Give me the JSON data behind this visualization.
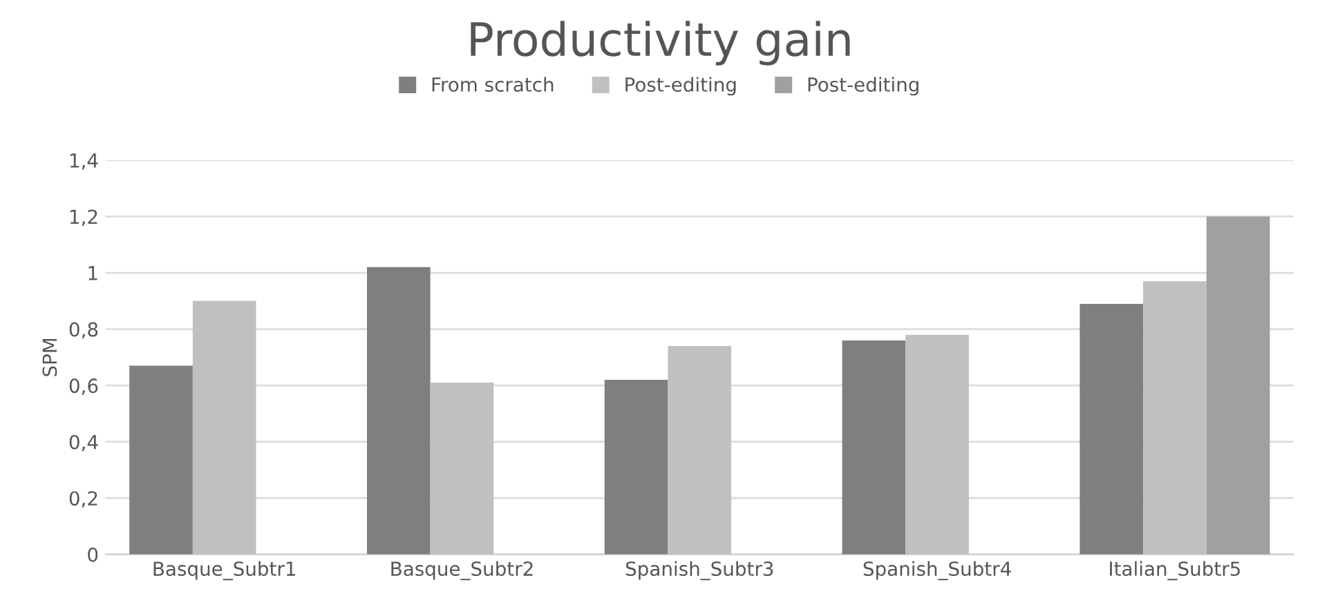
{
  "chart_data": {
    "type": "bar",
    "title": "Productivity gain",
    "ylabel": "SPM",
    "categories": [
      "Basque_Subtr1",
      "Basque_Subtr2",
      "Spanish_Subtr3",
      "Spanish_Subtr4",
      "Italian_Subtr5"
    ],
    "series": [
      {
        "name": "From scratch",
        "color": "#7f7f7f",
        "values": [
          0.67,
          1.02,
          0.62,
          0.76,
          0.89
        ]
      },
      {
        "name": "Post-editing",
        "color": "#c0c0c0",
        "values": [
          0.9,
          0.61,
          0.74,
          0.78,
          0.97
        ]
      },
      {
        "name": "Post-editing",
        "color": "#a0a0a0",
        "values": [
          null,
          null,
          null,
          null,
          1.2
        ]
      }
    ],
    "ylim": [
      0,
      1.4
    ],
    "yticks": [
      0,
      {
        "value": 0.2,
        "label": "0,2"
      },
      {
        "value": 0.4,
        "label": "0,4"
      },
      {
        "value": 0.6,
        "label": "0,6"
      },
      {
        "value": 0.8,
        "label": "0,8"
      },
      1,
      {
        "value": 1.2,
        "label": "1,2"
      },
      {
        "value": 1.4,
        "label": "1,4"
      }
    ],
    "grid": "y",
    "legend": "top"
  }
}
